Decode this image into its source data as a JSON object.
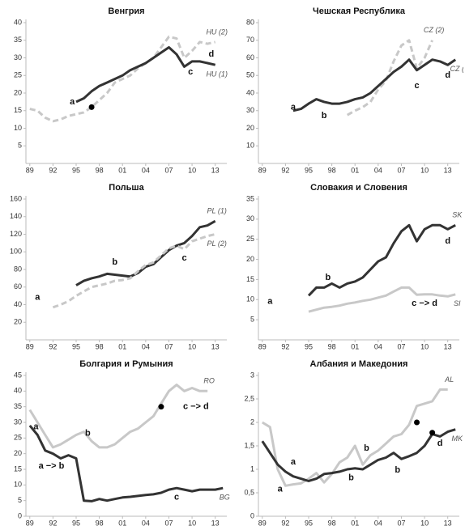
{
  "chart_data": [
    {
      "type": "line",
      "title": "Венгрия",
      "x": [
        1989,
        1990,
        1991,
        1992,
        1993,
        1994,
        1995,
        1996,
        1997,
        1998,
        1999,
        2000,
        2001,
        2002,
        2003,
        2004,
        2005,
        2006,
        2007,
        2008,
        2009,
        2010,
        2011,
        2012,
        2013,
        2014
      ],
      "xlim": [
        1988.5,
        2014.5
      ],
      "xticks": [
        {
          "value": 1989,
          "label": "89"
        },
        {
          "value": 1992,
          "label": "92"
        },
        {
          "value": 1995,
          "label": "95"
        },
        {
          "value": 1998,
          "label": "98"
        },
        {
          "value": 2001,
          "label": "01"
        },
        {
          "value": 2004,
          "label": "04"
        },
        {
          "value": 2007,
          "label": "07"
        },
        {
          "value": 2010,
          "label": "10"
        },
        {
          "value": 2013,
          "label": "13"
        }
      ],
      "ylim": [
        0,
        40
      ],
      "yticks": [
        5,
        10,
        15,
        20,
        25,
        30,
        35,
        40
      ],
      "series": [
        {
          "name": "HU (2)",
          "color": "#c8c8c8",
          "dashed": true,
          "values": [
            15.5,
            15,
            13,
            12,
            12.5,
            13.5,
            14,
            14.5,
            16,
            18,
            20,
            23,
            24,
            25,
            27,
            28.5,
            30,
            33,
            36,
            35.5,
            30,
            32,
            34.5,
            34,
            34.5,
            null
          ]
        },
        {
          "name": "HU (1)",
          "color": "#333333",
          "dashed": false,
          "values": [
            null,
            null,
            null,
            null,
            null,
            null,
            17.5,
            18.5,
            20.5,
            22,
            23,
            24,
            25,
            26.5,
            27.5,
            28.5,
            30,
            31.5,
            33,
            31,
            27.5,
            29,
            29,
            28.5,
            28,
            null
          ]
        }
      ],
      "annotations": [
        {
          "text": "a",
          "x": 1994.5,
          "y": 17.5
        },
        {
          "text": "c",
          "x": 2009.8,
          "y": 26
        },
        {
          "text": "d",
          "x": 2012.5,
          "y": 31
        }
      ],
      "points": [
        {
          "x": 1997,
          "y": 16
        }
      ]
    },
    {
      "type": "line",
      "title": "Чешская Республика",
      "x": [
        1989,
        1990,
        1991,
        1992,
        1993,
        1994,
        1995,
        1996,
        1997,
        1998,
        1999,
        2000,
        2001,
        2002,
        2003,
        2004,
        2005,
        2006,
        2007,
        2008,
        2009,
        2010,
        2011,
        2012,
        2013,
        2014
      ],
      "xlim": [
        1988.5,
        2014.5
      ],
      "xticks": [
        {
          "value": 1989,
          "label": "89"
        },
        {
          "value": 1992,
          "label": "92"
        },
        {
          "value": 1995,
          "label": "95"
        },
        {
          "value": 1998,
          "label": "98"
        },
        {
          "value": 2001,
          "label": "01"
        },
        {
          "value": 2004,
          "label": "04"
        },
        {
          "value": 2007,
          "label": "07"
        },
        {
          "value": 2010,
          "label": "10"
        },
        {
          "value": 2013,
          "label": "13"
        }
      ],
      "ylim": [
        0,
        80
      ],
      "yticks": [
        10,
        20,
        30,
        40,
        50,
        60,
        70,
        80
      ],
      "series": [
        {
          "name": "CZ (2)",
          "color": "#c8c8c8",
          "dashed": true,
          "values": [
            null,
            null,
            null,
            null,
            null,
            null,
            null,
            null,
            null,
            null,
            null,
            27.5,
            30,
            32,
            35,
            42,
            47,
            58,
            67,
            70,
            54,
            60,
            70,
            null,
            null,
            null
          ]
        },
        {
          "name": "CZ (",
          "color": "#333333",
          "dashed": false,
          "values": [
            null,
            null,
            null,
            null,
            30,
            31,
            34,
            36.5,
            35,
            34,
            34,
            35,
            36.5,
            37.5,
            40,
            44,
            48,
            52,
            55,
            59,
            53,
            56,
            59,
            58,
            56,
            59
          ]
        }
      ],
      "annotations": [
        {
          "text": "a",
          "x": 1993,
          "y": 32
        },
        {
          "text": "b",
          "x": 1997,
          "y": 27
        },
        {
          "text": "c",
          "x": 2009,
          "y": 44
        },
        {
          "text": "d",
          "x": 2013,
          "y": 50
        }
      ],
      "points": []
    },
    {
      "type": "line",
      "title": "Польша",
      "x": [
        1989,
        1990,
        1991,
        1992,
        1993,
        1994,
        1995,
        1996,
        1997,
        1998,
        1999,
        2000,
        2001,
        2002,
        2003,
        2004,
        2005,
        2006,
        2007,
        2008,
        2009,
        2010,
        2011,
        2012,
        2013,
        2014
      ],
      "xlim": [
        1988.5,
        2014.5
      ],
      "xticks": [
        {
          "value": 1989,
          "label": "89"
        },
        {
          "value": 1992,
          "label": "92"
        },
        {
          "value": 1995,
          "label": "95"
        },
        {
          "value": 1998,
          "label": "98"
        },
        {
          "value": 2001,
          "label": "01"
        },
        {
          "value": 2004,
          "label": "04"
        },
        {
          "value": 2007,
          "label": "07"
        },
        {
          "value": 2010,
          "label": "10"
        },
        {
          "value": 2013,
          "label": "13"
        }
      ],
      "ylim": [
        0,
        160
      ],
      "yticks": [
        20,
        40,
        60,
        80,
        100,
        120,
        140,
        160
      ],
      "series": [
        {
          "name": "PL (1)",
          "color": "#333333",
          "dashed": false,
          "values": [
            null,
            null,
            null,
            null,
            null,
            null,
            62,
            67,
            70,
            72,
            75,
            74,
            73,
            72,
            76,
            83,
            86,
            94,
            102,
            107,
            110,
            118,
            128,
            130,
            135,
            null
          ]
        },
        {
          "name": "PL (2)",
          "color": "#c8c8c8",
          "dashed": true,
          "values": [
            null,
            null,
            null,
            37,
            40,
            44,
            50,
            55,
            60,
            62,
            64,
            67,
            68,
            70,
            78,
            85,
            88,
            96,
            104,
            107,
            103,
            112,
            115,
            118,
            120,
            null
          ]
        }
      ],
      "annotations": [
        {
          "text": "a",
          "x": 1990,
          "y": 48
        },
        {
          "text": "b",
          "x": 2000,
          "y": 88
        },
        {
          "text": "c",
          "x": 2009,
          "y": 93
        }
      ],
      "points": []
    },
    {
      "type": "line",
      "title": "Словакия и Словения",
      "x": [
        1989,
        1990,
        1991,
        1992,
        1993,
        1994,
        1995,
        1996,
        1997,
        1998,
        1999,
        2000,
        2001,
        2002,
        2003,
        2004,
        2005,
        2006,
        2007,
        2008,
        2009,
        2010,
        2011,
        2012,
        2013,
        2014
      ],
      "xlim": [
        1988.5,
        2014.5
      ],
      "xticks": [
        {
          "value": 1989,
          "label": "89"
        },
        {
          "value": 1992,
          "label": "92"
        },
        {
          "value": 1995,
          "label": "95"
        },
        {
          "value": 1998,
          "label": "98"
        },
        {
          "value": 2001,
          "label": "01"
        },
        {
          "value": 2004,
          "label": "04"
        },
        {
          "value": 2007,
          "label": "07"
        },
        {
          "value": 2010,
          "label": "10"
        },
        {
          "value": 2013,
          "label": "13"
        }
      ],
      "ylim": [
        0,
        35
      ],
      "yticks": [
        5,
        10,
        15,
        20,
        25,
        30,
        35
      ],
      "series": [
        {
          "name": "SK",
          "color": "#333333",
          "dashed": false,
          "values": [
            null,
            null,
            null,
            null,
            null,
            null,
            11,
            13,
            13,
            14,
            13,
            14,
            14.5,
            15.5,
            17.5,
            19.5,
            20.5,
            24,
            27,
            28.5,
            24.5,
            27.5,
            28.5,
            28.5,
            27.5,
            28.5
          ]
        },
        {
          "name": "SI",
          "color": "#c8c8c8",
          "dashed": false,
          "values": [
            null,
            null,
            null,
            null,
            null,
            null,
            7,
            7.5,
            8,
            8.2,
            8.5,
            9,
            9.3,
            9.7,
            10,
            10.5,
            11,
            12,
            13,
            13,
            11.2,
            11.3,
            11.3,
            11,
            10.8,
            11.3
          ]
        }
      ],
      "annotations": [
        {
          "text": "a",
          "x": 1990,
          "y": 9.5
        },
        {
          "text": "b",
          "x": 1997.5,
          "y": 15.5
        },
        {
          "text": "c −> d",
          "x": 2010,
          "y": 9
        },
        {
          "text": "d",
          "x": 2013,
          "y": 24.5
        }
      ],
      "points": []
    },
    {
      "type": "line",
      "title": "Болгария и Румыния",
      "x": [
        1989,
        1990,
        1991,
        1992,
        1993,
        1994,
        1995,
        1996,
        1997,
        1998,
        1999,
        2000,
        2001,
        2002,
        2003,
        2004,
        2005,
        2006,
        2007,
        2008,
        2009,
        2010,
        2011,
        2012,
        2013,
        2014
      ],
      "xlim": [
        1988.5,
        2014.5
      ],
      "xticks": [
        {
          "value": 1989,
          "label": "89"
        },
        {
          "value": 1992,
          "label": "92"
        },
        {
          "value": 1995,
          "label": "95"
        },
        {
          "value": 1998,
          "label": "98"
        },
        {
          "value": 2001,
          "label": "01"
        },
        {
          "value": 2004,
          "label": "04"
        },
        {
          "value": 2007,
          "label": "07"
        },
        {
          "value": 2010,
          "label": "10"
        },
        {
          "value": 2013,
          "label": "13"
        }
      ],
      "ylim": [
        0,
        45
      ],
      "yticks": [
        0,
        5,
        10,
        15,
        20,
        25,
        30,
        35,
        40,
        45
      ],
      "series": [
        {
          "name": "RO",
          "color": "#c8c8c8",
          "dashed": false,
          "values": [
            34,
            30,
            26,
            22,
            23,
            24.5,
            26,
            27,
            24,
            22,
            22,
            23,
            25,
            27,
            28,
            30,
            32,
            36,
            40,
            42,
            40,
            41,
            40,
            40,
            null,
            null
          ]
        },
        {
          "name": "BG",
          "color": "#333333",
          "dashed": false,
          "values": [
            29,
            26,
            21,
            20,
            18.5,
            19.5,
            18.5,
            5,
            4.8,
            5.5,
            5,
            5.5,
            6,
            6.2,
            6.5,
            6.8,
            7,
            7.5,
            8.5,
            9,
            8.5,
            8,
            8.5,
            8.5,
            8.5,
            9
          ]
        }
      ],
      "annotations": [
        {
          "text": "a",
          "x": 1989.8,
          "y": 28.5
        },
        {
          "text": "b",
          "x": 1996.5,
          "y": 26.5
        },
        {
          "text": "a −> b",
          "x": 1991.8,
          "y": 16
        },
        {
          "text": "c",
          "x": 2008,
          "y": 6
        },
        {
          "text": "c −> d",
          "x": 2010.5,
          "y": 35
        }
      ],
      "points": [
        {
          "x": 2006,
          "y": 35
        }
      ]
    },
    {
      "type": "line",
      "title": "Албания и Македония",
      "x": [
        1989,
        1990,
        1991,
        1992,
        1993,
        1994,
        1995,
        1996,
        1997,
        1998,
        1999,
        2000,
        2001,
        2002,
        2003,
        2004,
        2005,
        2006,
        2007,
        2008,
        2009,
        2010,
        2011,
        2012,
        2013,
        2014
      ],
      "xlim": [
        1988.5,
        2014.5
      ],
      "xticks": [
        {
          "value": 1989,
          "label": "89"
        },
        {
          "value": 1992,
          "label": "92"
        },
        {
          "value": 1995,
          "label": "95"
        },
        {
          "value": 1998,
          "label": "98"
        },
        {
          "value": 2001,
          "label": "01"
        },
        {
          "value": 2004,
          "label": "04"
        },
        {
          "value": 2007,
          "label": "07"
        },
        {
          "value": 2010,
          "label": "10"
        },
        {
          "value": 2013,
          "label": "13"
        }
      ],
      "ylim": [
        0,
        3
      ],
      "yticks": [
        0,
        {
          "value": 0.5,
          "label": "0,5"
        },
        1,
        {
          "value": 1.5,
          "label": "1,5"
        },
        2,
        {
          "value": 2.5,
          "label": "2,5"
        },
        3
      ],
      "series": [
        {
          "name": "AL",
          "color": "#c8c8c8",
          "dashed": false,
          "values": [
            2,
            1.9,
            1,
            0.65,
            0.68,
            0.7,
            0.8,
            0.92,
            0.72,
            0.9,
            1.15,
            1.25,
            1.5,
            1.1,
            1.3,
            1.4,
            1.55,
            1.7,
            1.75,
            1.95,
            2.35,
            2.4,
            2.45,
            2.7,
            2.7,
            null
          ]
        },
        {
          "name": "MK",
          "color": "#333333",
          "dashed": false,
          "values": [
            1.6,
            1.35,
            1.1,
            0.95,
            0.85,
            0.8,
            0.75,
            0.8,
            0.9,
            0.92,
            0.95,
            1,
            1.02,
            1,
            1.1,
            1.2,
            1.25,
            1.35,
            1.22,
            1.28,
            1.35,
            1.5,
            1.75,
            1.7,
            1.8,
            1.85
          ]
        }
      ],
      "annotations": [
        {
          "text": "a",
          "x": 1993,
          "y": 1.15
        },
        {
          "text": "a",
          "x": 1991.3,
          "y": 0.58
        },
        {
          "text": "b",
          "x": 2002.5,
          "y": 1.45
        },
        {
          "text": "b",
          "x": 2000.5,
          "y": 0.82
        },
        {
          "text": "b",
          "x": 2006.5,
          "y": 0.98
        },
        {
          "text": "d",
          "x": 2012,
          "y": 1.55
        }
      ],
      "points": [
        {
          "x": 2009,
          "y": 2
        },
        {
          "x": 2011,
          "y": 1.78
        }
      ]
    }
  ]
}
